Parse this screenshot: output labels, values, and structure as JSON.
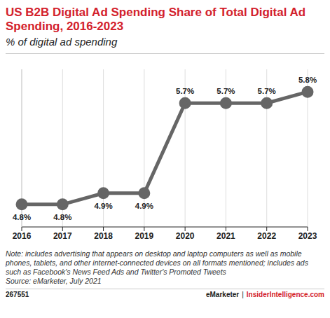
{
  "chart_data": {
    "type": "line",
    "title": "US B2B Digital Ad Spending Share of Total Digital Ad Spending, 2016-2023",
    "subtitle": "% of digital ad spending",
    "categories": [
      "2016",
      "2017",
      "2018",
      "2019",
      "2020",
      "2021",
      "2022",
      "2023"
    ],
    "values": [
      4.8,
      4.8,
      4.9,
      4.9,
      5.7,
      5.7,
      5.7,
      5.8
    ],
    "value_labels": [
      "4.8%",
      "4.8%",
      "4.9%",
      "4.9%",
      "5.7%",
      "5.7%",
      "5.7%",
      "5.8%"
    ],
    "color": "#666666",
    "marker": "circle",
    "ylim": [
      4.6,
      6.0
    ],
    "grid": true,
    "data_labels": true,
    "tick_labels": "x",
    "note": "Note: includes advertising that appears on desktop and laptop computers as well as mobile phones, tablets, and other internet-connected devices on all formats mentioned; includes ads such as Facebook's News Feed Ads and Twitter's Promoted Tweets",
    "source": "Source: eMarketer, July 2021",
    "footer": {
      "id": "267551",
      "brand": "eMarketer",
      "separator": "|",
      "site": "InsiderIntelligence.com"
    }
  }
}
